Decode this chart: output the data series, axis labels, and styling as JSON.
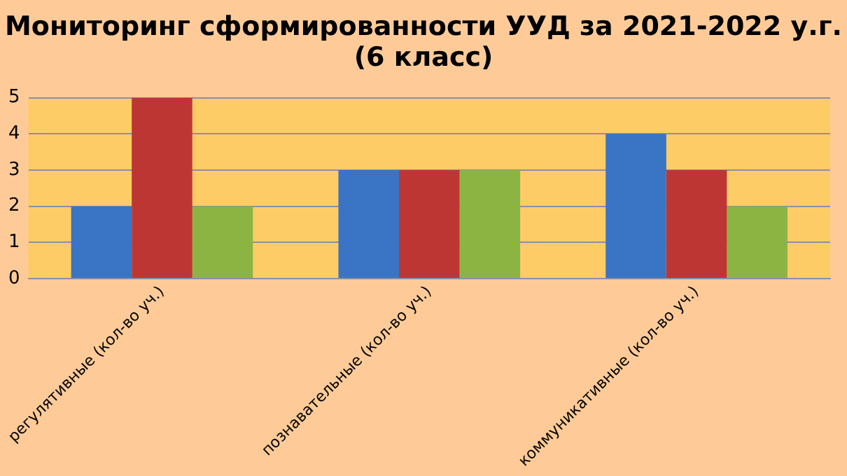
{
  "chart_data": {
    "type": "bar",
    "title": "Мониторинг сформированности УУД за 2021-2022 у.г. (6 класс)",
    "categories": [
      "регулятивные (кол-во уч.)",
      "познавательные (кол-во уч.)",
      "коммуникативные (кол-во уч.)"
    ],
    "series": [
      {
        "color": "#3a74c4",
        "values": [
          2,
          3,
          4
        ]
      },
      {
        "color": "#be3634",
        "values": [
          5,
          3,
          3
        ]
      },
      {
        "color": "#8cb443",
        "values": [
          2,
          3,
          2
        ]
      }
    ],
    "ylim": [
      0,
      5
    ],
    "yticks": [
      0,
      1,
      2,
      3,
      4,
      5
    ],
    "grid": "y",
    "legend": false
  }
}
